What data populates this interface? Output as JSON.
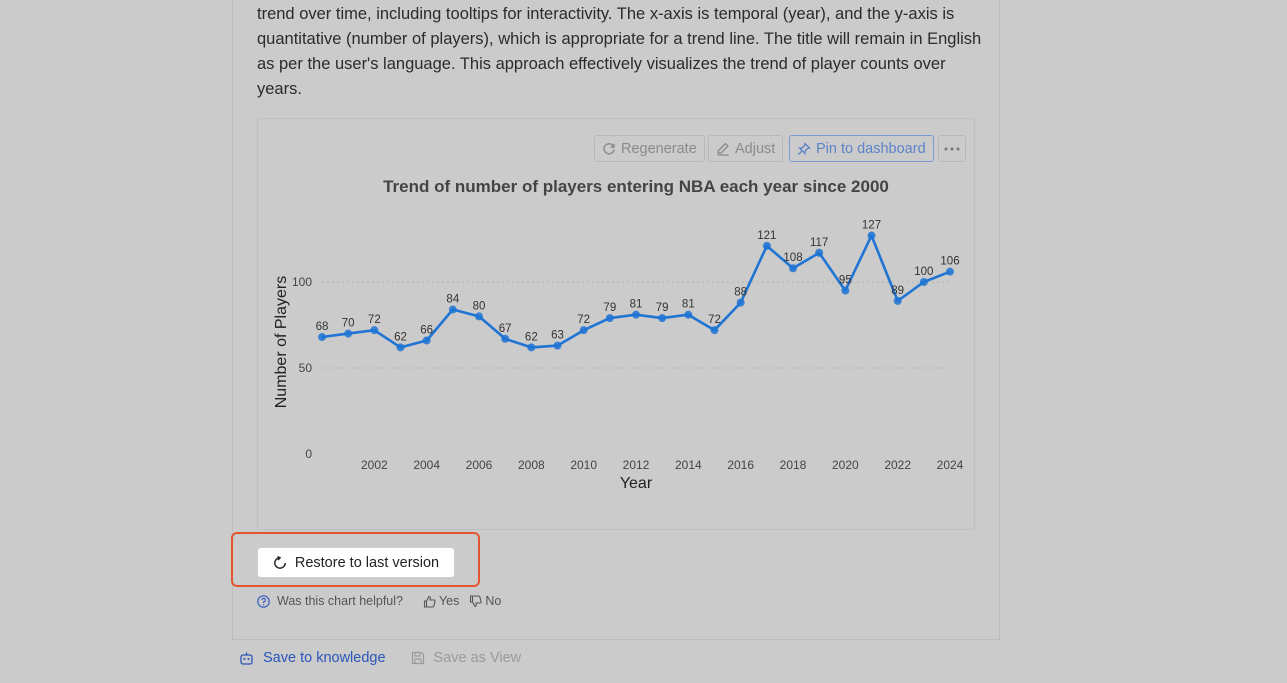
{
  "description": "trend over time, including tooltips for interactivity. The x-axis is temporal (year), and the y-axis is quantitative (number of players), which is appropriate for a trend line. The title will remain in English as per the user's language. This approach effectively visualizes the trend of player counts over years.",
  "toolbar": {
    "regenerate": "Regenerate",
    "adjust": "Adjust",
    "pin": "Pin to dashboard"
  },
  "restore": {
    "label": "Restore to last version"
  },
  "feedback": {
    "question": "Was this chart helpful?",
    "yes": "Yes",
    "no": "No"
  },
  "footer": {
    "save_knowledge": "Save to knowledge",
    "save_view": "Save as View"
  },
  "colors": {
    "line": "#1f74d4",
    "accent": "#2a56b8",
    "highlight": "#e4552f"
  },
  "chart_data": {
    "type": "line",
    "title": "Trend of number of players entering NBA each year since 2000",
    "xlabel": "Year",
    "ylabel": "Number of Players",
    "x": [
      2000,
      2001,
      2002,
      2003,
      2004,
      2005,
      2006,
      2007,
      2008,
      2009,
      2010,
      2011,
      2012,
      2013,
      2014,
      2015,
      2016,
      2017,
      2018,
      2019,
      2020,
      2021,
      2022,
      2023,
      2024
    ],
    "values": [
      68,
      70,
      72,
      62,
      66,
      84,
      80,
      67,
      62,
      63,
      72,
      79,
      81,
      79,
      81,
      72,
      88,
      121,
      108,
      117,
      95,
      127,
      89,
      100,
      106
    ],
    "x_ticks": [
      2002,
      2004,
      2006,
      2008,
      2010,
      2012,
      2014,
      2016,
      2018,
      2020,
      2022,
      2024
    ],
    "y_ticks": [
      0,
      50,
      100
    ],
    "ylim": [
      0,
      130
    ],
    "grid": true
  }
}
